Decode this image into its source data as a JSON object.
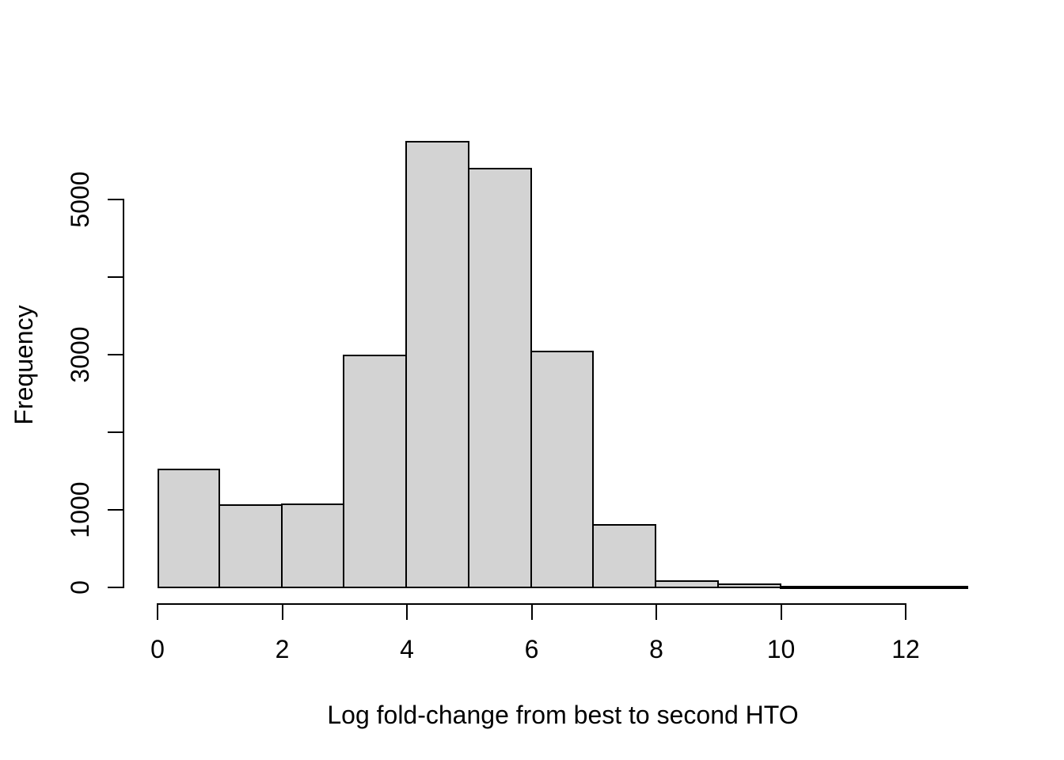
{
  "figure": {
    "background": "#ffffff",
    "bar_fill": "#d3d3d3",
    "bar_border": "#000000",
    "axis_color": "#000000",
    "text_color": "#000000"
  },
  "chart_data": {
    "type": "bar",
    "subtype": "histogram",
    "title": "",
    "xlabel": "Log fold-change from best to second HTO",
    "ylabel": "Frequency",
    "bin_edges": [
      0,
      1,
      2,
      3,
      4,
      5,
      6,
      7,
      8,
      9,
      10,
      11,
      12,
      13
    ],
    "counts": [
      1520,
      1060,
      1070,
      2990,
      5740,
      5400,
      3040,
      810,
      85,
      40,
      10,
      8,
      8
    ],
    "xlim": [
      0,
      13
    ],
    "ylim": [
      0,
      5740
    ],
    "x_ticks": [
      0,
      2,
      4,
      6,
      8,
      10,
      12
    ],
    "x_tick_labels": [
      "0",
      "2",
      "4",
      "6",
      "8",
      "10",
      "12"
    ],
    "y_ticks": [
      0,
      1000,
      2000,
      3000,
      4000,
      5000
    ],
    "y_tick_labels": [
      "0",
      "1000",
      "",
      "3000",
      "",
      "5000"
    ],
    "grid": false,
    "legend": null
  }
}
